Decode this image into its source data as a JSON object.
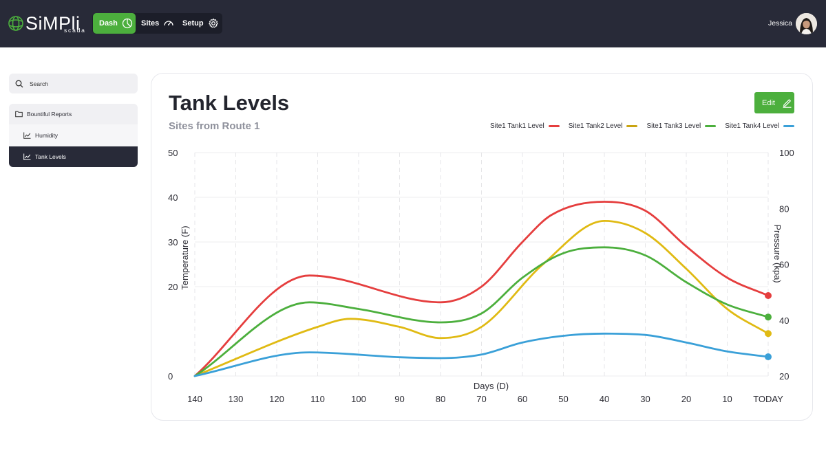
{
  "app": {
    "logo_text": "SiMPli",
    "logo_subtext": "scada"
  },
  "nav": {
    "dash_label": "Dash",
    "sites_label": "Sites",
    "setup_label": "Setup"
  },
  "user": {
    "name": "Jessica"
  },
  "sidebar": {
    "search_placeholder": "Search",
    "folder_label": "Bountiful Reports",
    "items": [
      {
        "label": "Humidity",
        "selected": false
      },
      {
        "label": "Tank Levels",
        "selected": true
      }
    ]
  },
  "report": {
    "title": "Tank Levels",
    "subtitle": "Sites from Route 1",
    "edit_label": "Edit"
  },
  "colors": {
    "accent": "#4caf3d",
    "topbar": "#282a38"
  },
  "chart_data": {
    "type": "line",
    "title": "",
    "xlabel": "Days (D)",
    "ylabel": "Temperature (F)",
    "y2label": "Pressure (kpa)",
    "x": [
      140,
      130,
      120,
      110,
      100,
      90,
      80,
      70,
      60,
      50,
      40,
      30,
      20,
      10,
      0
    ],
    "xtick_labels": [
      "140",
      "130",
      "120",
      "110",
      "100",
      "90",
      "80",
      "70",
      "60",
      "50",
      "40",
      "30",
      "20",
      "10",
      "TODAY"
    ],
    "xlim": [
      140,
      0
    ],
    "ylim": [
      0,
      50
    ],
    "yticks": [
      0,
      20,
      30,
      40,
      50
    ],
    "ytick_labels": [
      "0",
      "20",
      "30",
      "40",
      "50"
    ],
    "y2lim": [
      20,
      100
    ],
    "y2ticks": [
      20,
      40,
      60,
      80,
      100
    ],
    "grid": true,
    "legend_position": "top-right",
    "series": [
      {
        "name": "Site1 Tank1 Level",
        "color": "#e53e3e",
        "x": [
          140,
          112,
          80,
          70,
          60,
          53,
          40,
          30,
          20,
          10,
          0
        ],
        "values": [
          0,
          22.5,
          16.5,
          20,
          30,
          36,
          39,
          37,
          29,
          22,
          18
        ]
      },
      {
        "name": "Site1 Tank2 Level",
        "color": "#e0ba13",
        "x": [
          140,
          110,
          102,
          90,
          80,
          70,
          55,
          40,
          30,
          20,
          10,
          0
        ],
        "values": [
          0,
          11,
          12.8,
          11,
          8.5,
          11,
          25,
          34.7,
          32,
          24,
          15,
          9.5
        ]
      },
      {
        "name": "Site1 Tank3 Level",
        "color": "#4caf3d",
        "x": [
          140,
          112,
          100,
          80,
          70,
          60,
          50,
          40,
          30,
          20,
          10,
          0
        ],
        "values": [
          0,
          16.5,
          15,
          12,
          14,
          22,
          27.5,
          28.8,
          27,
          21,
          16,
          13.2
        ]
      },
      {
        "name": "Site1 Tank4 Level",
        "color": "#3aa0d8",
        "x": [
          140,
          112,
          90,
          80,
          70,
          60,
          50,
          40,
          30,
          20,
          10,
          0
        ],
        "values": [
          0,
          5.3,
          4.2,
          4,
          4.8,
          7.5,
          9,
          9.5,
          9.2,
          7.5,
          5.5,
          4.3
        ]
      }
    ]
  }
}
